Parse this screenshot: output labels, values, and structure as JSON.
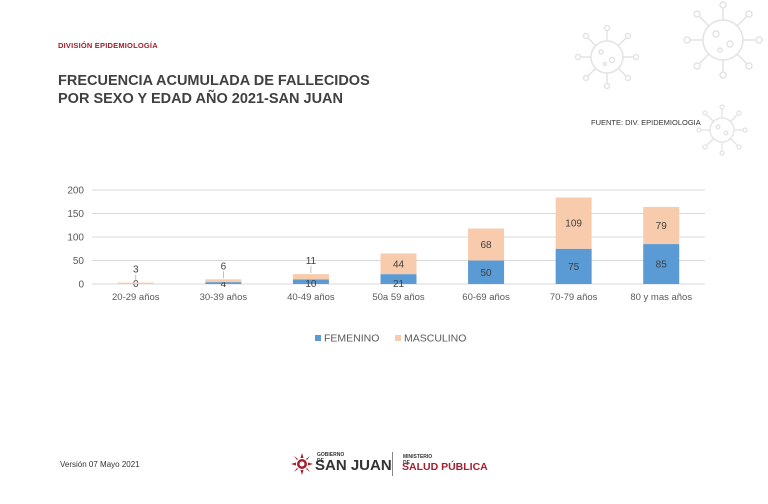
{
  "header": {
    "division": "DIVISIÓN EPIDEMIOLOGÍA",
    "title_line1": "FRECUENCIA ACUMULADA DE FALLECIDOS",
    "title_line2": "POR SEXO Y EDAD AÑO 2021-SAN JUAN",
    "source": "FUENTE: DIV. EPIDEMIOLOGIA"
  },
  "footer": {
    "version": "Versión 07 Mayo 2021",
    "logo_top": "GOBIERNO DE",
    "logo_main": "SAN JUAN",
    "ministry_top": "MINISTERIO DE",
    "ministry_main": "SALUD PÚBLICA"
  },
  "colors": {
    "femenino": "#5b9bd5",
    "masculino": "#f8cbad",
    "grid": "#d9d9d9",
    "brand": "#a3202f"
  },
  "chart_data": {
    "type": "bar",
    "stacked": true,
    "categories": [
      "20-29 años",
      "30-39 años",
      "40-49 años",
      "50a 59 años",
      "60-69 años",
      "70-79 años",
      "80 y mas años"
    ],
    "series": [
      {
        "name": "FEMENINO",
        "values": [
          0,
          4,
          10,
          21,
          50,
          75,
          85
        ]
      },
      {
        "name": "MASCULINO",
        "values": [
          3,
          6,
          11,
          44,
          68,
          109,
          79
        ]
      }
    ],
    "yticks": [
      0,
      50,
      100,
      150,
      200
    ],
    "ylim": [
      0,
      200
    ],
    "grid": true,
    "legend": "bottom"
  }
}
